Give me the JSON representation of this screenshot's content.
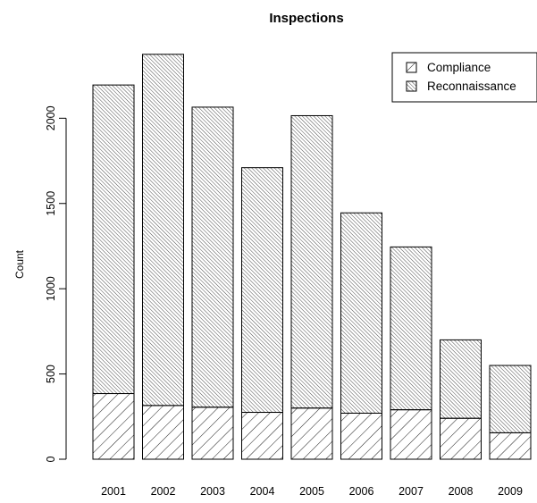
{
  "chart_data": {
    "type": "bar",
    "stacked": true,
    "title": "Inspections",
    "xlabel": "",
    "ylabel": "Count",
    "categories": [
      "2001",
      "2002",
      "2003",
      "2004",
      "2005",
      "2006",
      "2007",
      "2008",
      "2009"
    ],
    "series": [
      {
        "name": "Compliance",
        "pattern": "hatch-forward",
        "values": [
          385,
          315,
          305,
          275,
          300,
          270,
          290,
          240,
          155
        ]
      },
      {
        "name": "Reconnaissance",
        "pattern": "hatch-back",
        "values": [
          1810,
          2060,
          1760,
          1435,
          1715,
          1175,
          955,
          460,
          395
        ]
      }
    ],
    "yticks": [
      0,
      500,
      1000,
      1500,
      2000
    ],
    "ylim": [
      0,
      2400
    ],
    "grid": false,
    "legend": "top-right",
    "colors": {
      "stroke": "#000000",
      "background": "#ffffff"
    }
  }
}
